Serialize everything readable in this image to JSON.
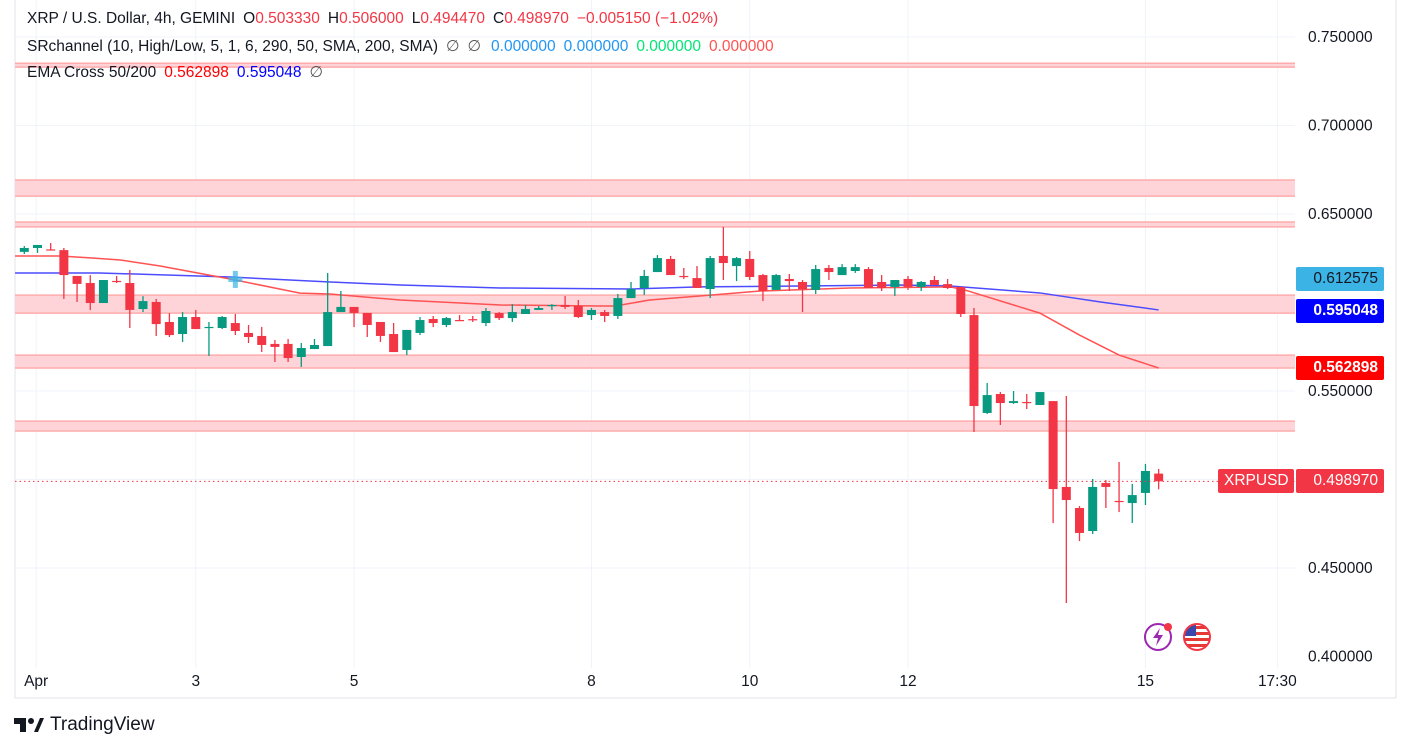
{
  "legend": {
    "symbol": "XRP / U.S. Dollar, 4h, GEMINI",
    "o_label": "O",
    "o": "0.503330",
    "h_label": "H",
    "h": "0.506000",
    "l_label": "L",
    "l": "0.494470",
    "c_label": "C",
    "c": "0.498970",
    "change": "−0.005150 (−1.02%)",
    "sr_name": "SRchannel (10, High/Low, 5, 1, 6, 290, 50, SMA, 200, SMA)",
    "sr_na1": "∅",
    "sr_na2": "∅",
    "sr_v1": "0.000000",
    "sr_v2": "0.000000",
    "sr_v3": "0.000000",
    "sr_v4": "0.000000",
    "ema_name": "EMA Cross 50/200",
    "ema_fast": "0.562898",
    "ema_slow": "0.595048",
    "ema_na": "∅"
  },
  "price_labels": {
    "crosshair": "0.612575",
    "ema_slow": "0.595048",
    "ema_fast": "0.562898",
    "symbol_tag": "XRPUSD",
    "last": "0.498970"
  },
  "colors": {
    "up": "#089981",
    "down": "#f23645",
    "ema_fast": "#ff5252",
    "ema_slow": "#4c4cff",
    "sr_zone": "#ffcdd2",
    "sr_line": "#ffabab",
    "crosshair": "#3bb3e4"
  },
  "branding": {
    "logo_text": "TradingView"
  },
  "icons": [
    "lightning-icon",
    "us-flag-icon"
  ],
  "chart_data": {
    "type": "candlestick",
    "interval": "4h",
    "ylim": [
      0.4,
      0.76
    ],
    "y_ticks": [
      "0.750000",
      "0.700000",
      "0.650000",
      "0.550000",
      "0.450000",
      "0.400000"
    ],
    "y_tick_values": [
      0.75,
      0.7,
      0.65,
      0.55,
      0.45,
      0.4
    ],
    "x_ticks": [
      {
        "label": "Apr",
        "candle": 0.9
      },
      {
        "label": "3",
        "candle": 13
      },
      {
        "label": "5",
        "candle": 25
      },
      {
        "label": "8",
        "candle": 43
      },
      {
        "label": "10",
        "candle": 55
      },
      {
        "label": "12",
        "candle": 67
      },
      {
        "label": "15",
        "candle": 85
      },
      {
        "label": "17:30",
        "candle": 95
      }
    ],
    "grid": true,
    "candles_ohlc": [
      [
        0.6286,
        0.6319,
        0.6274,
        0.6308
      ],
      [
        0.6308,
        0.6325,
        0.628,
        0.6325
      ],
      [
        0.63,
        0.6336,
        0.6294,
        0.6296
      ],
      [
        0.6296,
        0.6308,
        0.602,
        0.6155
      ],
      [
        0.615,
        0.615,
        0.6003,
        0.6105
      ],
      [
        0.611,
        0.6155,
        0.5957,
        0.5997
      ],
      [
        0.5997,
        0.6127,
        0.5997,
        0.6127
      ],
      [
        0.6122,
        0.615,
        0.611,
        0.6118
      ],
      [
        0.611,
        0.6184,
        0.5856,
        0.5958
      ],
      [
        0.5963,
        0.6036,
        0.5946,
        0.6008
      ],
      [
        0.6003,
        0.602,
        0.5811,
        0.5878
      ],
      [
        0.589,
        0.594,
        0.5805,
        0.5816
      ],
      [
        0.5822,
        0.5946,
        0.5777,
        0.5918
      ],
      [
        0.5918,
        0.5958,
        0.585,
        0.585
      ],
      [
        0.5856,
        0.589,
        0.5698,
        0.5862
      ],
      [
        0.5856,
        0.5924,
        0.585,
        0.5918
      ],
      [
        0.5884,
        0.5935,
        0.5816,
        0.5839
      ],
      [
        0.5828,
        0.5873,
        0.5771,
        0.5805
      ],
      [
        0.5811,
        0.5862,
        0.572,
        0.576
      ],
      [
        0.5766,
        0.5788,
        0.5664,
        0.5749
      ],
      [
        0.5766,
        0.5794,
        0.5664,
        0.5686
      ],
      [
        0.5692,
        0.5771,
        0.5636,
        0.5743
      ],
      [
        0.5737,
        0.5794,
        0.5737,
        0.576
      ],
      [
        0.5754,
        0.6167,
        0.5754,
        0.5946
      ],
      [
        0.5946,
        0.6065,
        0.5946,
        0.5975
      ],
      [
        0.5975,
        0.5975,
        0.5861,
        0.5941
      ],
      [
        0.5941,
        0.5941,
        0.5805,
        0.5873
      ],
      [
        0.589,
        0.589,
        0.5777,
        0.5811
      ],
      [
        0.5822,
        0.5884,
        0.572,
        0.572
      ],
      [
        0.5732,
        0.5845,
        0.5703,
        0.5845
      ],
      [
        0.5828,
        0.5918,
        0.5816,
        0.5901
      ],
      [
        0.5907,
        0.5924,
        0.5861,
        0.5884
      ],
      [
        0.5873,
        0.5918,
        0.5861,
        0.5912
      ],
      [
        0.5901,
        0.5929,
        0.5896,
        0.5898
      ],
      [
        0.5906,
        0.5924,
        0.589,
        0.5901
      ],
      [
        0.5884,
        0.5969,
        0.5867,
        0.5952
      ],
      [
        0.5941,
        0.5946,
        0.5901,
        0.5912
      ],
      [
        0.5912,
        0.5991,
        0.589,
        0.5946
      ],
      [
        0.5935,
        0.5986,
        0.5935,
        0.5963
      ],
      [
        0.5958,
        0.598,
        0.5958,
        0.5969
      ],
      [
        0.598,
        0.5991,
        0.5958,
        0.5986
      ],
      [
        0.5986,
        0.6037,
        0.5963,
        0.5975
      ],
      [
        0.598,
        0.6014,
        0.5912,
        0.5918
      ],
      [
        0.5929,
        0.5969,
        0.5901,
        0.5958
      ],
      [
        0.5946,
        0.5958,
        0.589,
        0.5924
      ],
      [
        0.5924,
        0.6048,
        0.5907,
        0.6025
      ],
      [
        0.6025,
        0.6116,
        0.6025,
        0.6076
      ],
      [
        0.6082,
        0.6184,
        0.6042,
        0.615
      ],
      [
        0.6172,
        0.6268,
        0.6172,
        0.6251
      ],
      [
        0.6246,
        0.6263,
        0.6155,
        0.6155
      ],
      [
        0.615,
        0.6195,
        0.6133,
        0.6148
      ],
      [
        0.6138,
        0.6206,
        0.6082,
        0.6082
      ],
      [
        0.6076,
        0.6263,
        0.6025,
        0.6251
      ],
      [
        0.6263,
        0.6427,
        0.6127,
        0.6223
      ],
      [
        0.6206,
        0.6257,
        0.6121,
        0.6251
      ],
      [
        0.6246,
        0.6291,
        0.6127,
        0.6144
      ],
      [
        0.6155,
        0.6161,
        0.6008,
        0.6065
      ],
      [
        0.6071,
        0.6161,
        0.6071,
        0.6155
      ],
      [
        0.6133,
        0.6161,
        0.6065,
        0.6121
      ],
      [
        0.6116,
        0.6127,
        0.5946,
        0.6076
      ],
      [
        0.6071,
        0.6212,
        0.6048,
        0.6189
      ],
      [
        0.6195,
        0.6212,
        0.6127,
        0.6172
      ],
      [
        0.6155,
        0.6217,
        0.6155,
        0.62
      ],
      [
        0.6178,
        0.6217,
        0.6167,
        0.62
      ],
      [
        0.6189,
        0.62,
        0.6082,
        0.6082
      ],
      [
        0.6116,
        0.6155,
        0.6065,
        0.6082
      ],
      [
        0.6088,
        0.6127,
        0.6037,
        0.6127
      ],
      [
        0.6133,
        0.615,
        0.6071,
        0.6088
      ],
      [
        0.6088,
        0.6121,
        0.6065,
        0.6116
      ],
      [
        0.6127,
        0.615,
        0.6099,
        0.6099
      ],
      [
        0.6104,
        0.6133,
        0.6076,
        0.6082
      ],
      [
        0.6088,
        0.6088,
        0.5918,
        0.5935
      ],
      [
        0.5929,
        0.5969,
        0.5268,
        0.5415
      ],
      [
        0.5376,
        0.5545,
        0.537,
        0.5477
      ],
      [
        0.5483,
        0.5494,
        0.5308,
        0.5432
      ],
      [
        0.5432,
        0.55,
        0.5427,
        0.5443
      ],
      [
        0.5438,
        0.5483,
        0.5398,
        0.5432
      ],
      [
        0.5421,
        0.5494,
        0.5421,
        0.5494
      ],
      [
        0.5443,
        0.5443,
        0.4754,
        0.4946
      ],
      [
        0.4958,
        0.5472,
        0.4302,
        0.4884
      ],
      [
        0.4839,
        0.485,
        0.4652,
        0.4698
      ],
      [
        0.4709,
        0.5003,
        0.4692,
        0.4958
      ],
      [
        0.498,
        0.4997,
        0.4839,
        0.4958
      ],
      [
        0.4879,
        0.5099,
        0.4816,
        0.4878
      ],
      [
        0.4867,
        0.4975,
        0.4754,
        0.4912
      ],
      [
        0.4924,
        0.5088,
        0.4856,
        0.5048
      ],
      [
        0.50333,
        0.506,
        0.49447,
        0.49897
      ]
    ],
    "ema_fast_points": [
      [
        -0.7,
        0.6263
      ],
      [
        2.7,
        0.6263
      ],
      [
        5,
        0.6252
      ],
      [
        7.3,
        0.624
      ],
      [
        10.3,
        0.6206
      ],
      [
        15.6,
        0.6133
      ],
      [
        20.9,
        0.6053
      ],
      [
        23.2,
        0.6048
      ],
      [
        28.5,
        0.6014
      ],
      [
        36.1,
        0.5986
      ],
      [
        43.6,
        0.598
      ],
      [
        44.8,
        0.598
      ],
      [
        47.4,
        0.6014
      ],
      [
        51.2,
        0.6037
      ],
      [
        55.8,
        0.6065
      ],
      [
        62.6,
        0.6082
      ],
      [
        70.2,
        0.6088
      ],
      [
        71.3,
        0.6071
      ],
      [
        77,
        0.594
      ],
      [
        80,
        0.5816
      ],
      [
        83,
        0.5703
      ],
      [
        86,
        0.563
      ]
    ],
    "ema_slow_points": [
      [
        -0.7,
        0.6167
      ],
      [
        5.7,
        0.6167
      ],
      [
        15.6,
        0.6144
      ],
      [
        23.2,
        0.6116
      ],
      [
        28.5,
        0.6099
      ],
      [
        36.1,
        0.6082
      ],
      [
        46,
        0.6076
      ],
      [
        51.2,
        0.6088
      ],
      [
        58.8,
        0.6093
      ],
      [
        66.4,
        0.6099
      ],
      [
        70.2,
        0.6093
      ],
      [
        77,
        0.6054
      ],
      [
        81.6,
        0.6003
      ],
      [
        86,
        0.5958
      ]
    ],
    "cross_marker": {
      "candle": 16,
      "price": 0.6133
    },
    "sr_zones": [
      [
        0.733,
        0.7352
      ],
      [
        0.6601,
        0.6692
      ],
      [
        0.6427,
        0.6455
      ],
      [
        0.594,
        0.6042
      ],
      [
        0.563,
        0.5703
      ],
      [
        0.5274,
        0.533
      ]
    ],
    "last_price": 0.49897
  }
}
